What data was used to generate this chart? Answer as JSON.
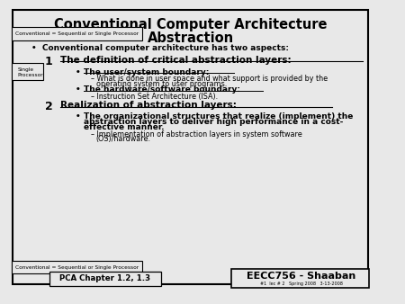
{
  "title_line1": "Conventional Computer Architecture",
  "title_line2": "Abstraction",
  "bg_color": "#e8e8e8",
  "border_color": "#000000",
  "text_color": "#000000",
  "main_bullet": "Conventional computer architecture has two aspects:",
  "item1_num": "1",
  "item1_heading": "The definition of critical abstraction layers:",
  "item1_sub1_bullet": "The user/system boundary:",
  "item1_sub1_dash1": "What is done in user space and what support is provided by the",
  "item1_sub1_dash1b": "operating system to user programs.",
  "item1_sub2_bullet": "The hardware/software boundary:",
  "item1_sub2_dash1": "Instruction Set Architecture (ISA).",
  "item2_num": "2",
  "item2_heading": "Realization of abstraction layers:",
  "item2_sub1_bullet": "The organizational structures that realize (implement) the",
  "item2_sub1_bullet2": "abstraction layers to deliver high performance in a cost-",
  "item2_sub1_bullet3": "effective manner.",
  "item2_sub1_dash1": "Implementation of abstraction layers in system software",
  "item2_sub1_dash1b": "(OS)/hardware.",
  "box_top_label": "Conventional = Sequential or Single Processor",
  "box_side_label_line1": "Single",
  "box_side_label_line2": "Processor",
  "box_bottom_label": "Conventional = Sequential or Single Processor",
  "footer_left": "PCA Chapter 1.2, 1.3",
  "footer_right": "EECC756 - Shaaban",
  "footer_sub": "#1  lec # 2   Spring 2008   3-13-2008"
}
